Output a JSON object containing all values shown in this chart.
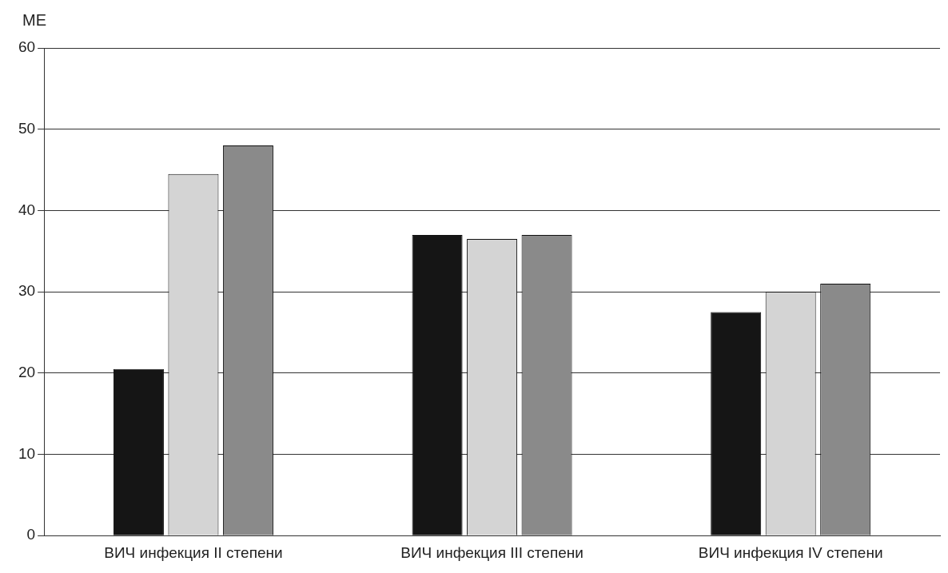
{
  "chart_data": {
    "type": "bar",
    "ylabel": "МЕ",
    "categories": [
      "ВИЧ инфекция II степени",
      "ВИЧ инфекция III степени",
      "ВИЧ инфекция IV степени"
    ],
    "series": [
      {
        "color": "#151515",
        "values": [
          20.5,
          37,
          27.5
        ]
      },
      {
        "color": "#d4d4d4",
        "values": [
          44.5,
          36.5,
          30
        ]
      },
      {
        "color": "#8a8a8a",
        "values": [
          48,
          37,
          31
        ]
      }
    ],
    "ylim": [
      0,
      60
    ],
    "yticks": [
      0,
      10,
      20,
      30,
      40,
      50,
      60
    ],
    "grid": "y"
  }
}
